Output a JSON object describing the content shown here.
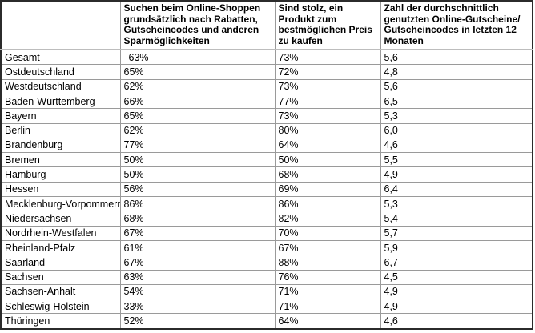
{
  "colors": {
    "background": "#ffffff",
    "text": "#000000",
    "outer_border": "#2b2b2b",
    "grid_line": "#9a9a9a",
    "header_separator": "#bdbdbd"
  },
  "chart_data": {
    "type": "table",
    "columns": [
      "",
      "Suchen beim Online-Shoppen grundsätzlich nach Rabatten, Gutscheincodes und anderen Sparmöglichkeiten",
      "Sind stolz, ein Produkt zum bestmöglichen Preis zu kaufen",
      "Zahl der durchschnittlich genutzten Online-Gutscheine/ Gutscheincodes in letzten 12 Monaten"
    ],
    "rows": [
      {
        "region": "Gesamt",
        "values": [
          "63%",
          "73%",
          "5,6"
        ]
      },
      {
        "region": "Ostdeutschland",
        "values": [
          "65%",
          "72%",
          "4,8"
        ]
      },
      {
        "region": "Westdeutschland",
        "values": [
          "62%",
          "73%",
          "5,6"
        ]
      },
      {
        "region": "Baden-Württemberg",
        "values": [
          "66%",
          "77%",
          "6,5"
        ]
      },
      {
        "region": "Bayern",
        "values": [
          "65%",
          "73%",
          "5,3"
        ]
      },
      {
        "region": "Berlin",
        "values": [
          "62%",
          "80%",
          "6,0"
        ]
      },
      {
        "region": "Brandenburg",
        "values": [
          "77%",
          "64%",
          "4,6"
        ]
      },
      {
        "region": "Bremen",
        "values": [
          "50%",
          "50%",
          "5,5"
        ]
      },
      {
        "region": "Hamburg",
        "values": [
          "50%",
          "68%",
          "4,9"
        ]
      },
      {
        "region": "Hessen",
        "values": [
          "56%",
          "69%",
          "6,4"
        ]
      },
      {
        "region": "Mecklenburg-Vorpommern",
        "values": [
          "86%",
          "86%",
          "5,3"
        ]
      },
      {
        "region": "Niedersachsen",
        "values": [
          "68%",
          "82%",
          "5,4"
        ]
      },
      {
        "region": "Nordrhein-Westfalen",
        "values": [
          "67%",
          "70%",
          "5,7"
        ]
      },
      {
        "region": "Rheinland-Pfalz",
        "values": [
          "61%",
          "67%",
          "5,9"
        ]
      },
      {
        "region": "Saarland",
        "values": [
          "67%",
          "88%",
          "6,7"
        ]
      },
      {
        "region": "Sachsen",
        "values": [
          "63%",
          "76%",
          "4,5"
        ]
      },
      {
        "region": "Sachsen-Anhalt",
        "values": [
          "54%",
          "71%",
          "4,9"
        ]
      },
      {
        "region": "Schleswig-Holstein",
        "values": [
          "33%",
          "71%",
          "4,9"
        ]
      },
      {
        "region": "Thüringen",
        "values": [
          "52%",
          "64%",
          "4,6"
        ]
      }
    ]
  }
}
